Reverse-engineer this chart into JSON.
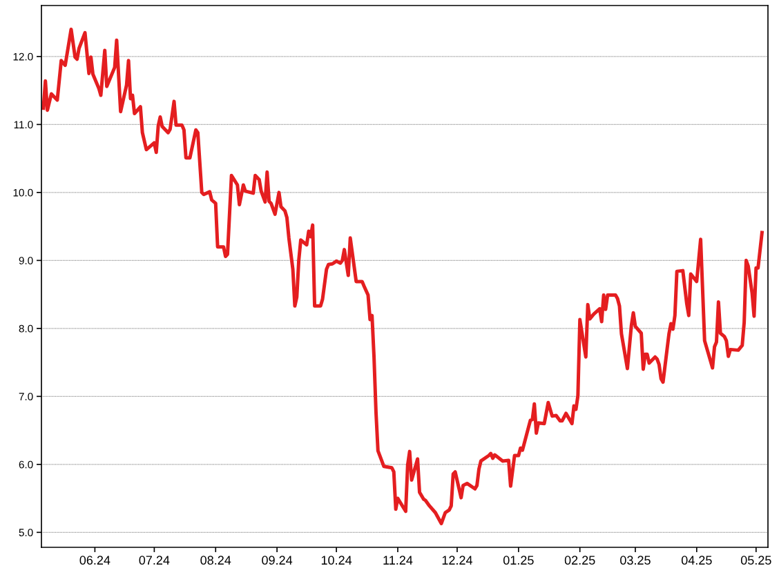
{
  "chart_data": {
    "type": "line",
    "grid": "y",
    "marker": "none",
    "line_style": "solid",
    "xlim": [
      "2024-05-05",
      "2025-05-07"
    ],
    "ylim": [
      4.78,
      12.75
    ],
    "xticks": [
      {
        "value": "2024-06-01",
        "label": "06.24"
      },
      {
        "value": "2024-07-01",
        "label": "07.24"
      },
      {
        "value": "2024-08-01",
        "label": "08.24"
      },
      {
        "value": "2024-09-01",
        "label": "09.24"
      },
      {
        "value": "2024-10-01",
        "label": "10.24"
      },
      {
        "value": "2024-11-01",
        "label": "11.24"
      },
      {
        "value": "2024-12-01",
        "label": "12.24"
      },
      {
        "value": "2025-01-01",
        "label": "01.25"
      },
      {
        "value": "2025-02-01",
        "label": "02.25"
      },
      {
        "value": "2025-03-01",
        "label": "03.25"
      },
      {
        "value": "2025-04-01",
        "label": "04.25"
      },
      {
        "value": "2025-05-01",
        "label": "05.25"
      }
    ],
    "yticks": [
      {
        "value": 5,
        "label": "5.0"
      },
      {
        "value": 6,
        "label": "6.0"
      },
      {
        "value": 7,
        "label": "7.0"
      },
      {
        "value": 8,
        "label": "8.0"
      },
      {
        "value": 9,
        "label": "9.0"
      },
      {
        "value": 10,
        "label": "10.0"
      },
      {
        "value": 11,
        "label": "11.0"
      },
      {
        "value": 12,
        "label": "12.0"
      }
    ],
    "x": [
      "2024-05-06",
      "2024-05-07",
      "2024-05-08",
      "2024-05-10",
      "2024-05-13",
      "2024-05-15",
      "2024-05-17",
      "2024-05-20",
      "2024-05-22",
      "2024-05-23",
      "2024-05-24",
      "2024-05-27",
      "2024-05-29",
      "2024-05-30",
      "2024-05-31",
      "2024-06-03",
      "2024-06-04",
      "2024-06-06",
      "2024-06-07",
      "2024-06-11",
      "2024-06-12",
      "2024-06-14",
      "2024-06-17",
      "2024-06-18",
      "2024-06-19",
      "2024-06-20",
      "2024-06-21",
      "2024-06-24",
      "2024-06-25",
      "2024-06-27",
      "2024-07-01",
      "2024-07-02",
      "2024-07-03",
      "2024-07-04",
      "2024-07-05",
      "2024-07-08",
      "2024-07-09",
      "2024-07-11",
      "2024-07-12",
      "2024-07-15",
      "2024-07-16",
      "2024-07-17",
      "2024-07-19",
      "2024-07-22",
      "2024-07-23",
      "2024-07-25",
      "2024-07-26",
      "2024-07-29",
      "2024-07-30",
      "2024-08-01",
      "2024-08-02",
      "2024-08-05",
      "2024-08-06",
      "2024-08-07",
      "2024-08-09",
      "2024-08-12",
      "2024-08-13",
      "2024-08-15",
      "2024-08-16",
      "2024-08-20",
      "2024-08-21",
      "2024-08-23",
      "2024-08-24",
      "2024-08-26",
      "2024-08-27",
      "2024-08-28",
      "2024-08-29",
      "2024-08-31",
      "2024-09-02",
      "2024-09-03",
      "2024-09-05",
      "2024-09-06",
      "2024-09-07",
      "2024-09-09",
      "2024-09-10",
      "2024-09-11",
      "2024-09-12",
      "2024-09-13",
      "2024-09-16",
      "2024-09-17",
      "2024-09-18",
      "2024-09-19",
      "2024-09-20",
      "2024-09-23",
      "2024-09-24",
      "2024-09-26",
      "2024-09-27",
      "2024-09-29",
      "2024-10-01",
      "2024-10-03",
      "2024-10-04",
      "2024-10-05",
      "2024-10-07",
      "2024-10-08",
      "2024-10-11",
      "2024-10-14",
      "2024-10-15",
      "2024-10-17",
      "2024-10-18",
      "2024-10-19",
      "2024-10-20",
      "2024-10-21",
      "2024-10-22",
      "2024-10-25",
      "2024-10-29",
      "2024-10-30",
      "2024-10-31",
      "2024-11-01",
      "2024-11-05",
      "2024-11-06",
      "2024-11-07",
      "2024-11-08",
      "2024-11-11",
      "2024-11-12",
      "2024-11-14",
      "2024-11-15",
      "2024-11-17",
      "2024-11-20",
      "2024-11-23",
      "2024-11-25",
      "2024-11-27",
      "2024-11-28",
      "2024-11-29",
      "2024-11-30",
      "2024-12-03",
      "2024-12-04",
      "2024-12-06",
      "2024-12-10",
      "2024-12-11",
      "2024-12-12",
      "2024-12-13",
      "2024-12-17",
      "2024-12-18",
      "2024-12-19",
      "2024-12-20",
      "2024-12-24",
      "2024-12-27",
      "2024-12-28",
      "2024-12-30",
      "2025-01-01",
      "2025-01-02",
      "2025-01-03",
      "2025-01-07",
      "2025-01-08",
      "2025-01-09",
      "2025-01-10",
      "2025-01-11",
      "2025-01-14",
      "2025-01-16",
      "2025-01-18",
      "2025-01-20",
      "2025-01-22",
      "2025-01-23",
      "2025-01-25",
      "2025-01-28",
      "2025-01-29",
      "2025-01-30",
      "2025-01-31",
      "2025-02-01",
      "2025-02-04",
      "2025-02-05",
      "2025-02-06",
      "2025-02-08",
      "2025-02-11",
      "2025-02-12",
      "2025-02-13",
      "2025-02-14",
      "2025-02-15",
      "2025-02-19",
      "2025-02-20",
      "2025-02-21",
      "2025-02-22",
      "2025-02-25",
      "2025-02-27",
      "2025-02-28",
      "2025-03-01",
      "2025-03-04",
      "2025-03-05",
      "2025-03-06",
      "2025-03-07",
      "2025-03-08",
      "2025-03-11",
      "2025-03-12",
      "2025-03-13",
      "2025-03-14",
      "2025-03-15",
      "2025-03-18",
      "2025-03-19",
      "2025-03-20",
      "2025-03-21",
      "2025-03-22",
      "2025-03-25",
      "2025-03-27",
      "2025-03-28",
      "2025-03-29",
      "2025-04-01",
      "2025-04-03",
      "2025-04-05",
      "2025-04-09",
      "2025-04-10",
      "2025-04-11",
      "2025-04-12",
      "2025-04-13",
      "2025-04-15",
      "2025-04-16",
      "2025-04-17",
      "2025-04-18",
      "2025-04-22",
      "2025-04-24",
      "2025-04-25",
      "2025-04-26",
      "2025-04-27",
      "2025-04-29",
      "2025-04-30",
      "2025-05-01",
      "2025-05-02",
      "2025-05-04"
    ],
    "series": [
      {
        "color": "#e41e20",
        "values": [
          11.24,
          11.64,
          11.21,
          11.45,
          11.36,
          11.94,
          11.87,
          12.4,
          11.99,
          11.96,
          12.12,
          12.35,
          11.75,
          11.99,
          11.74,
          11.53,
          11.43,
          12.09,
          11.56,
          11.84,
          12.24,
          11.19,
          11.58,
          11.94,
          11.38,
          11.43,
          11.16,
          11.26,
          10.88,
          10.63,
          10.73,
          10.59,
          10.98,
          11.11,
          10.97,
          10.88,
          10.93,
          11.34,
          10.99,
          10.99,
          10.92,
          10.51,
          10.51,
          10.92,
          10.88,
          10.0,
          9.97,
          10.01,
          9.89,
          9.84,
          9.2,
          9.2,
          9.06,
          9.09,
          10.25,
          10.11,
          9.82,
          10.11,
          10.02,
          9.99,
          10.25,
          10.19,
          10.02,
          9.86,
          10.3,
          9.87,
          9.84,
          9.68,
          10.0,
          9.79,
          9.73,
          9.63,
          9.33,
          8.87,
          8.33,
          8.46,
          9.0,
          9.3,
          9.23,
          9.43,
          9.35,
          9.52,
          8.33,
          8.33,
          8.43,
          8.87,
          8.94,
          8.95,
          8.99,
          8.96,
          9.0,
          9.16,
          8.78,
          9.33,
          8.69,
          8.69,
          8.62,
          8.49,
          8.13,
          8.19,
          7.58,
          6.77,
          6.2,
          5.97,
          5.95,
          5.89,
          5.34,
          5.5,
          5.31,
          5.99,
          6.19,
          5.77,
          6.08,
          5.59,
          5.49,
          5.47,
          5.39,
          5.29,
          5.13,
          5.29,
          5.33,
          5.39,
          5.86,
          5.89,
          5.51,
          5.69,
          5.72,
          5.64,
          5.69,
          5.93,
          6.05,
          6.13,
          6.16,
          6.09,
          6.14,
          6.05,
          6.06,
          5.68,
          6.13,
          6.13,
          6.24,
          6.21,
          6.65,
          6.66,
          6.89,
          6.46,
          6.61,
          6.6,
          6.91,
          6.71,
          6.72,
          6.64,
          6.64,
          6.75,
          6.6,
          6.86,
          6.81,
          7.01,
          8.13,
          7.58,
          8.35,
          8.14,
          8.21,
          8.29,
          8.1,
          8.49,
          8.28,
          8.49,
          8.49,
          8.44,
          8.33,
          7.92,
          7.41,
          8.04,
          8.23,
          8.03,
          7.93,
          7.4,
          7.62,
          7.62,
          7.49,
          7.58,
          7.55,
          7.47,
          7.26,
          7.21,
          7.92,
          8.07,
          7.99,
          8.19,
          8.84,
          8.85,
          8.36,
          8.19,
          8.8,
          8.69,
          9.31,
          7.82,
          7.42,
          7.73,
          7.8,
          8.39,
          7.93,
          7.88,
          7.82,
          7.59,
          7.69,
          7.68,
          7.75,
          8.09,
          9.0,
          8.92,
          8.52,
          8.18,
          8.89,
          8.89,
          9.41
        ]
      }
    ]
  }
}
